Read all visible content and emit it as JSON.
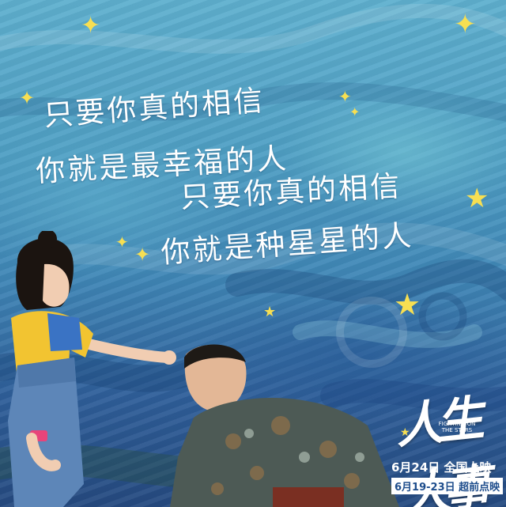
{
  "poster": {
    "lyrics": [
      "只要你真的相信",
      "你就是最幸福的人",
      "只要你真的相信",
      "你就是种星星的人"
    ],
    "movie_title": "人生大事",
    "movie_title_en": "FIGHTING ON THE STARS",
    "release_line": "6月24日 全国上映",
    "preview_line": "6月19-23日 超前点映"
  },
  "colors": {
    "sky_top": "#5fb0cf",
    "sky_bottom": "#254a80",
    "lyric_text": "#ffffff",
    "star": "#f7df52"
  },
  "icons": [
    "sparkle-star-icon",
    "five-point-star-icon"
  ]
}
